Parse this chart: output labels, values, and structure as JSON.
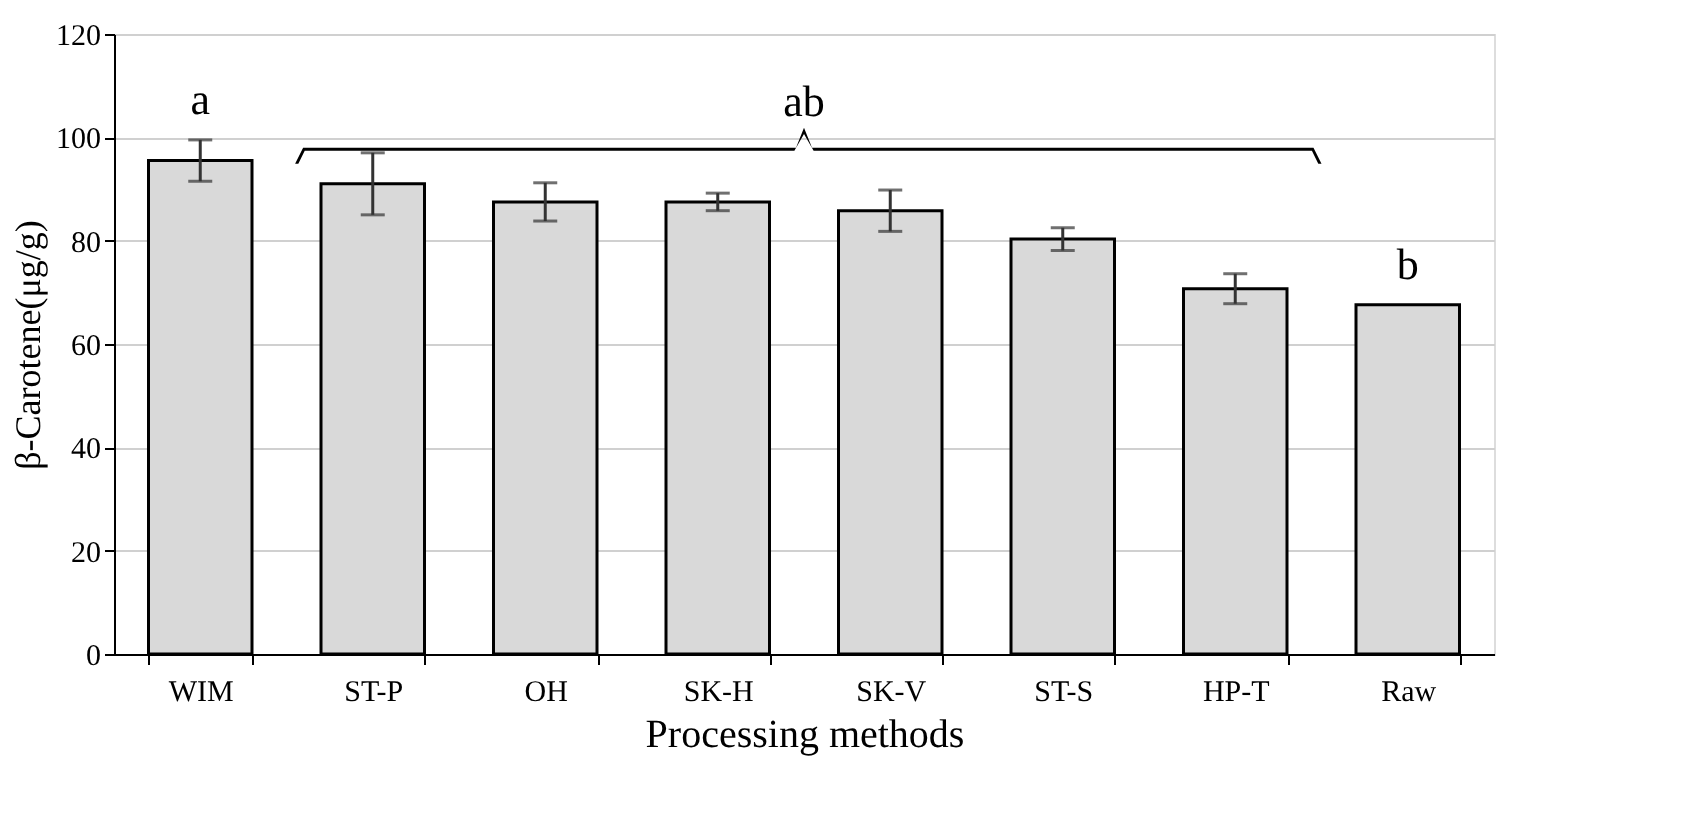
{
  "chart_data": {
    "type": "bar",
    "xlabel": "Processing methods",
    "ylabel": "β-Carotene(μg/g)",
    "categories": [
      "WIM",
      "ST-P",
      "OH",
      "SK-H",
      "SK-V",
      "ST-S",
      "HP-T",
      "Raw"
    ],
    "values": [
      95.5,
      91,
      87.5,
      87.5,
      85.8,
      80.3,
      70.7,
      67.6
    ],
    "errors": [
      4,
      6,
      3.7,
      1.7,
      4,
      2.2,
      2.9,
      null
    ],
    "color": "#d9d9d9",
    "ylim": [
      0,
      120
    ],
    "yticks": [
      0,
      20,
      40,
      60,
      80,
      100,
      120
    ],
    "grid": "y",
    "annotations": [
      "a",
      "ab",
      "b"
    ]
  }
}
